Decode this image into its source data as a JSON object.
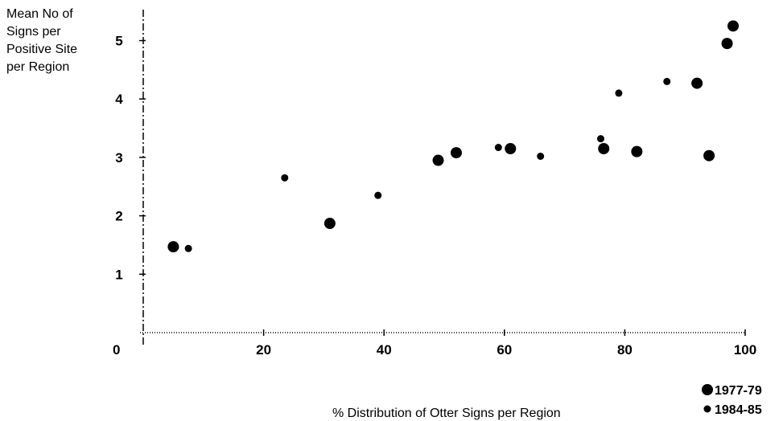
{
  "chart_data": {
    "type": "scatter",
    "title": "",
    "ylabel_lines": [
      "Mean No of",
      "Signs per",
      "Positive Site",
      "per Region"
    ],
    "xlabel": "% Distribution of Otter Signs per Region",
    "origin_label": "0",
    "xlim": [
      0,
      100
    ],
    "ylim": [
      0,
      5.3
    ],
    "x_ticks": [
      {
        "value": 20,
        "label": "20"
      },
      {
        "value": 40,
        "label": "40"
      },
      {
        "value": 60,
        "label": "60"
      },
      {
        "value": 80,
        "label": "80"
      },
      {
        "value": 100,
        "label": "100"
      }
    ],
    "y_ticks": [
      {
        "value": 1,
        "label": "1"
      },
      {
        "value": 2,
        "label": "2"
      },
      {
        "value": 3,
        "label": "3"
      },
      {
        "value": 4,
        "label": "4"
      },
      {
        "value": 5,
        "label": "5"
      }
    ],
    "legend_position": "bottom-right",
    "series": [
      {
        "name": "1977-79",
        "marker": "large-dot",
        "color": "#000000",
        "points": [
          {
            "x": 5,
            "y": 1.47
          },
          {
            "x": 31,
            "y": 1.87
          },
          {
            "x": 49,
            "y": 2.95
          },
          {
            "x": 52,
            "y": 3.08
          },
          {
            "x": 61,
            "y": 3.15
          },
          {
            "x": 76.5,
            "y": 3.15
          },
          {
            "x": 82,
            "y": 3.1
          },
          {
            "x": 92,
            "y": 4.27
          },
          {
            "x": 94,
            "y": 3.03
          },
          {
            "x": 97,
            "y": 4.95
          },
          {
            "x": 98,
            "y": 5.25
          }
        ]
      },
      {
        "name": "1984-85",
        "marker": "small-dot",
        "color": "#000000",
        "points": [
          {
            "x": 7.5,
            "y": 1.44
          },
          {
            "x": 23.5,
            "y": 2.65
          },
          {
            "x": 39,
            "y": 2.35
          },
          {
            "x": 59,
            "y": 3.17
          },
          {
            "x": 66,
            "y": 3.02
          },
          {
            "x": 76,
            "y": 3.32
          },
          {
            "x": 79,
            "y": 4.1
          },
          {
            "x": 87,
            "y": 4.3
          }
        ]
      }
    ]
  }
}
